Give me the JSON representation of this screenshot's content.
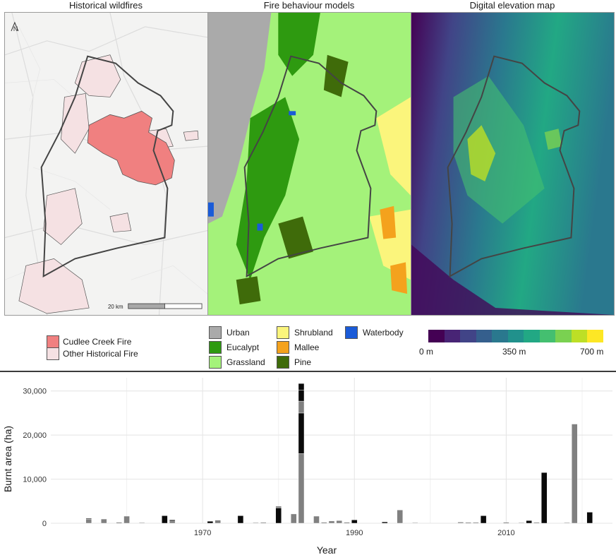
{
  "panels": {
    "historical": {
      "title": "Historical wildfires",
      "north_label": "N",
      "scale_label": "20 km"
    },
    "fuel": {
      "title": "Fire behaviour models"
    },
    "elevation": {
      "title": "Digital elevation map"
    }
  },
  "legend_fire": [
    {
      "label": "Cudlee Creek Fire",
      "color": "#f08080"
    },
    {
      "label": "Other Historical Fire",
      "color": "#f5e1e3"
    }
  ],
  "legend_fuel": [
    {
      "label": "Urban",
      "color": "#aaaaaa"
    },
    {
      "label": "Eucalypt",
      "color": "#2e9a10"
    },
    {
      "label": "Grassland",
      "color": "#a4f27a"
    },
    {
      "label": "Shrubland",
      "color": "#fbf57c"
    },
    {
      "label": "Mallee",
      "color": "#f4a21d"
    },
    {
      "label": "Pine",
      "color": "#3f6b0a"
    },
    {
      "label": "Waterbody",
      "color": "#1a5bd8"
    }
  ],
  "legend_elevation": {
    "labels": [
      "0 m",
      "350 m",
      "700 m"
    ],
    "colors": [
      "#440154",
      "#482475",
      "#414487",
      "#355f8d",
      "#2a788e",
      "#21918c",
      "#22a884",
      "#44bf70",
      "#7ad151",
      "#bddf26",
      "#fde725"
    ]
  },
  "chart_data": {
    "type": "bar",
    "xlabel": "Year",
    "ylabel": "Burnt area (ha)",
    "xlim": [
      1950,
      2024
    ],
    "ylim": [
      0,
      33000
    ],
    "x_ticks": [
      1970,
      1990,
      2010
    ],
    "y_ticks": [
      0,
      10000,
      20000,
      30000
    ],
    "y_tick_labels": [
      "0",
      "10,000",
      "20,000",
      "30,000"
    ],
    "colors": {
      "black": "#0a0a0a",
      "grey": "#808080"
    },
    "bars": [
      {
        "year": 1955,
        "segments": [
          {
            "value": 900,
            "color": "grey"
          },
          {
            "value": 200,
            "color": "black"
          }
        ]
      },
      {
        "year": 1957,
        "segments": [
          {
            "value": 950,
            "color": "grey"
          }
        ]
      },
      {
        "year": 1959,
        "segments": [
          {
            "value": 150,
            "color": "black"
          }
        ]
      },
      {
        "year": 1960,
        "segments": [
          {
            "value": 1600,
            "color": "grey"
          }
        ]
      },
      {
        "year": 1962,
        "segments": [
          {
            "value": 150,
            "color": "grey"
          }
        ]
      },
      {
        "year": 1965,
        "segments": [
          {
            "value": 1700,
            "color": "black"
          }
        ]
      },
      {
        "year": 1966,
        "segments": [
          {
            "value": 500,
            "color": "grey"
          },
          {
            "value": 250,
            "color": "black"
          }
        ]
      },
      {
        "year": 1971,
        "segments": [
          {
            "value": 450,
            "color": "black"
          }
        ]
      },
      {
        "year": 1972,
        "segments": [
          {
            "value": 700,
            "color": "grey"
          }
        ]
      },
      {
        "year": 1975,
        "segments": [
          {
            "value": 1700,
            "color": "black"
          }
        ]
      },
      {
        "year": 1977,
        "segments": [
          {
            "value": 150,
            "color": "grey"
          }
        ]
      },
      {
        "year": 1978,
        "segments": [
          {
            "value": 200,
            "color": "grey"
          }
        ]
      },
      {
        "year": 1980,
        "segments": [
          {
            "value": 3500,
            "color": "black"
          },
          {
            "value": 200,
            "color": "grey"
          },
          {
            "value": 150,
            "color": "black"
          }
        ]
      },
      {
        "year": 1982,
        "segments": [
          {
            "value": 2100,
            "color": "grey"
          }
        ]
      },
      {
        "year": 1983,
        "segments": [
          {
            "value": 15800,
            "color": "grey"
          },
          {
            "value": 9200,
            "color": "black"
          },
          {
            "value": 2700,
            "color": "grey"
          },
          {
            "value": 2500,
            "color": "black"
          },
          {
            "value": 1500,
            "color": "black"
          }
        ]
      },
      {
        "year": 1985,
        "segments": [
          {
            "value": 1600,
            "color": "grey"
          }
        ]
      },
      {
        "year": 1986,
        "segments": [
          {
            "value": 150,
            "color": "black"
          }
        ]
      },
      {
        "year": 1987,
        "segments": [
          {
            "value": 500,
            "color": "grey"
          }
        ]
      },
      {
        "year": 1988,
        "segments": [
          {
            "value": 600,
            "color": "grey"
          }
        ]
      },
      {
        "year": 1989,
        "segments": [
          {
            "value": 150,
            "color": "black"
          }
        ]
      },
      {
        "year": 1990,
        "segments": [
          {
            "value": 750,
            "color": "black"
          }
        ]
      },
      {
        "year": 1994,
        "segments": [
          {
            "value": 300,
            "color": "black"
          }
        ]
      },
      {
        "year": 1996,
        "segments": [
          {
            "value": 3000,
            "color": "grey"
          }
        ]
      },
      {
        "year": 1998,
        "segments": [
          {
            "value": 100,
            "color": "grey"
          }
        ]
      },
      {
        "year": 2004,
        "segments": [
          {
            "value": 250,
            "color": "grey"
          }
        ]
      },
      {
        "year": 2005,
        "segments": [
          {
            "value": 100,
            "color": "black"
          }
        ]
      },
      {
        "year": 2006,
        "segments": [
          {
            "value": 200,
            "color": "grey"
          }
        ]
      },
      {
        "year": 2007,
        "segments": [
          {
            "value": 1700,
            "color": "black"
          }
        ]
      },
      {
        "year": 2010,
        "segments": [
          {
            "value": 150,
            "color": "black"
          }
        ]
      },
      {
        "year": 2012,
        "segments": [
          {
            "value": 100,
            "color": "grey"
          }
        ]
      },
      {
        "year": 2013,
        "segments": [
          {
            "value": 600,
            "color": "black"
          }
        ]
      },
      {
        "year": 2014,
        "segments": [
          {
            "value": 200,
            "color": "grey"
          }
        ]
      },
      {
        "year": 2015,
        "segments": [
          {
            "value": 11500,
            "color": "black"
          }
        ]
      },
      {
        "year": 2018,
        "segments": [
          {
            "value": 150,
            "color": "grey"
          }
        ]
      },
      {
        "year": 2019,
        "segments": [
          {
            "value": 22500,
            "color": "grey"
          }
        ]
      },
      {
        "year": 2021,
        "segments": [
          {
            "value": 2500,
            "color": "black"
          }
        ]
      }
    ]
  }
}
